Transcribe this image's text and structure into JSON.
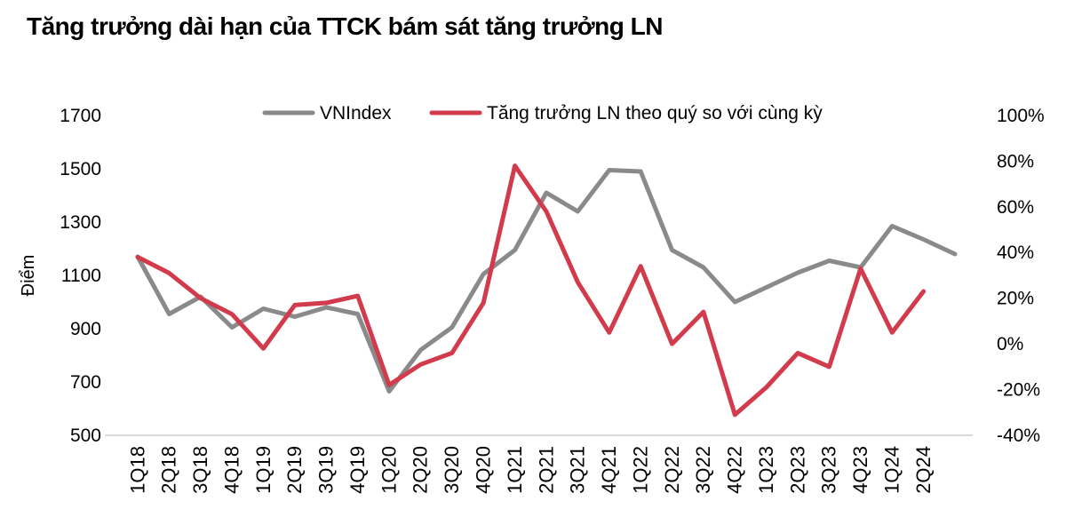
{
  "title": "Tăng trưởng dài hạn của TTCK bám sát tăng trưởng LN",
  "chart_data": {
    "type": "line",
    "categories": [
      "1Q18",
      "2Q18",
      "3Q18",
      "4Q18",
      "1Q19",
      "2Q19",
      "3Q19",
      "4Q19",
      "1Q20",
      "2Q20",
      "3Q20",
      "4Q20",
      "1Q21",
      "2Q21",
      "3Q21",
      "4Q21",
      "1Q22",
      "2Q22",
      "3Q22",
      "4Q22",
      "1Q23",
      "2Q23",
      "3Q23",
      "4Q23",
      "1Q24",
      "2Q24",
      ""
    ],
    "series": [
      {
        "name": "VNIndex",
        "axis": "left",
        "color": "#8a8a8a",
        "values": [
          1170,
          955,
          1020,
          905,
          975,
          945,
          980,
          955,
          665,
          820,
          905,
          1105,
          1195,
          1410,
          1340,
          1495,
          1490,
          1195,
          1130,
          1000,
          1055,
          1110,
          1155,
          1130,
          1285,
          1235,
          1180
        ]
      },
      {
        "name": "Tăng trưởng LN theo quý so với cùng kỳ",
        "axis": "right",
        "color": "#d13b4b",
        "values": [
          38,
          31,
          20,
          13,
          -2,
          17,
          18,
          21,
          -18,
          -9,
          -4,
          18,
          78,
          58,
          27,
          5,
          34,
          0,
          14,
          -31,
          -19,
          -4,
          -10,
          33,
          5,
          23,
          null
        ]
      }
    ],
    "left_axis": {
      "label": "Điểm",
      "min": 500,
      "max": 1700,
      "ticks": [
        1700,
        1500,
        1300,
        1100,
        900,
        700,
        500
      ]
    },
    "right_axis": {
      "min": -40,
      "max": 100,
      "ticks": [
        100,
        80,
        60,
        40,
        20,
        0,
        -20,
        -40
      ],
      "tick_suffix": "%"
    },
    "legend_position": "top",
    "grid": false,
    "axis_line_color": "#d9d9d9",
    "text_color": "#000000"
  }
}
